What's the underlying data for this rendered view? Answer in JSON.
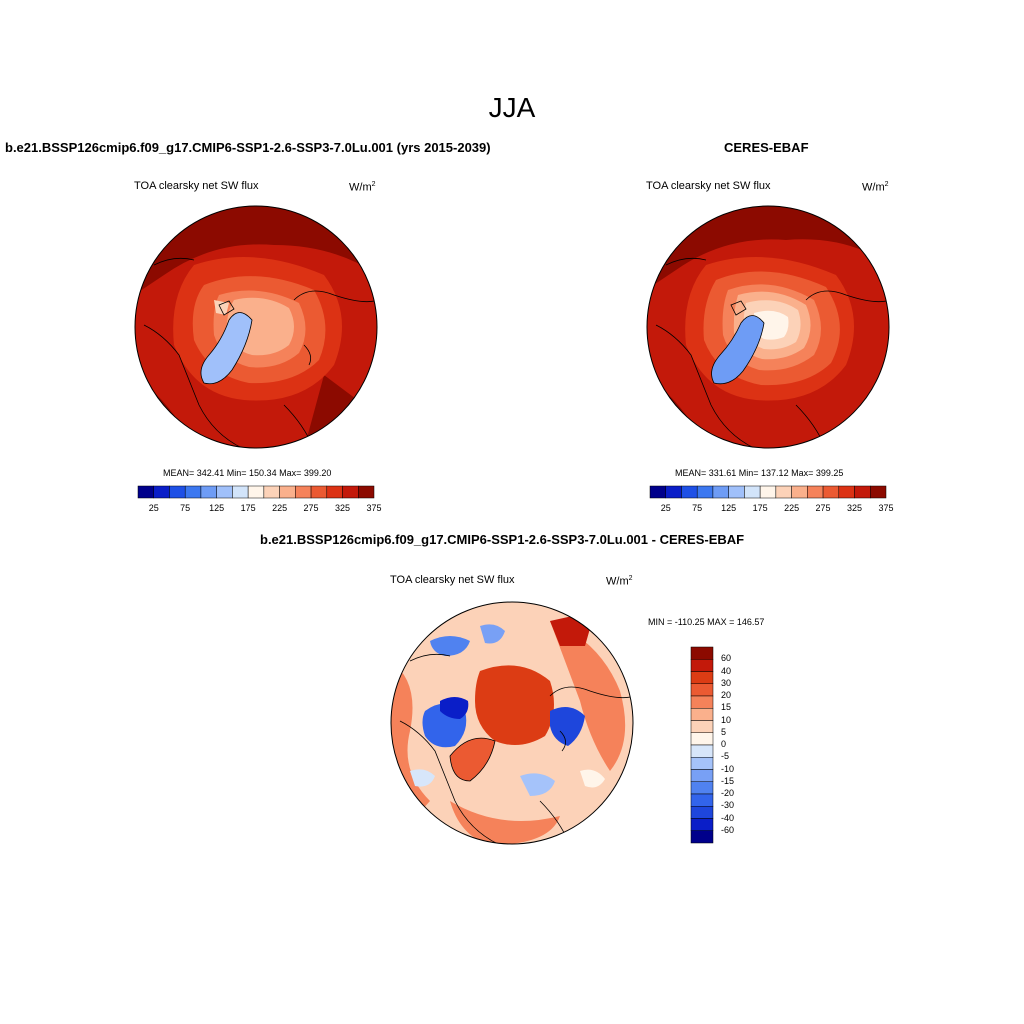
{
  "figure": {
    "season": "JJA"
  },
  "panels": {
    "model": {
      "title": "b.e21.BSSP126cmip6.f09_g17.CMIP6-SSP1-2.6-SSP3-7.0Lu.001 (yrs 2015-2039)",
      "variable": "TOA clearsky net SW flux",
      "units": "W/m",
      "units_sup": "2",
      "stats": "MEAN= 342.41  Min= 150.34  Max= 399.20"
    },
    "obs": {
      "title": "CERES-EBAF",
      "variable": "TOA clearsky net SW flux",
      "units": "W/m",
      "units_sup": "2",
      "stats": "MEAN= 331.61  Min= 137.12  Max= 399.25"
    },
    "diff": {
      "title": "b.e21.BSSP126cmip6.f09_g17.CMIP6-SSP1-2.6-SSP3-7.0Lu.001 - CERES-EBAF",
      "variable": "TOA clearsky net SW flux",
      "units": "W/m",
      "units_sup": "2",
      "stats": "MIN = -110.25 MAX = 146.57"
    }
  },
  "colorbars": {
    "abs": {
      "colors": [
        "#00008b",
        "#0a1ec8",
        "#1e50e6",
        "#3c78f0",
        "#6e9cf5",
        "#a0c0fa",
        "#d2e4fa",
        "#fff5ea",
        "#fcd2b8",
        "#fab08c",
        "#f5825a",
        "#eb5a32",
        "#dc3214",
        "#c3190a",
        "#8c0a00"
      ],
      "tick_labels": [
        "25",
        "75",
        "125",
        "175",
        "225",
        "275",
        "325",
        "375"
      ]
    },
    "diff": {
      "colors": [
        "#00008b",
        "#0a1ec8",
        "#1e46dc",
        "#3264eb",
        "#5082f0",
        "#78a0f5",
        "#a5c3fa",
        "#d7e6fa",
        "#fff5ea",
        "#fcd2b8",
        "#fab08c",
        "#f5825a",
        "#eb5a32",
        "#dc3c14",
        "#c3190a",
        "#8c0a00"
      ],
      "tick_labels": [
        "60",
        "40",
        "30",
        "20",
        "15",
        "10",
        "5",
        "0",
        "-5",
        "-10",
        "-15",
        "-20",
        "-30",
        "-40",
        "-60"
      ]
    }
  }
}
